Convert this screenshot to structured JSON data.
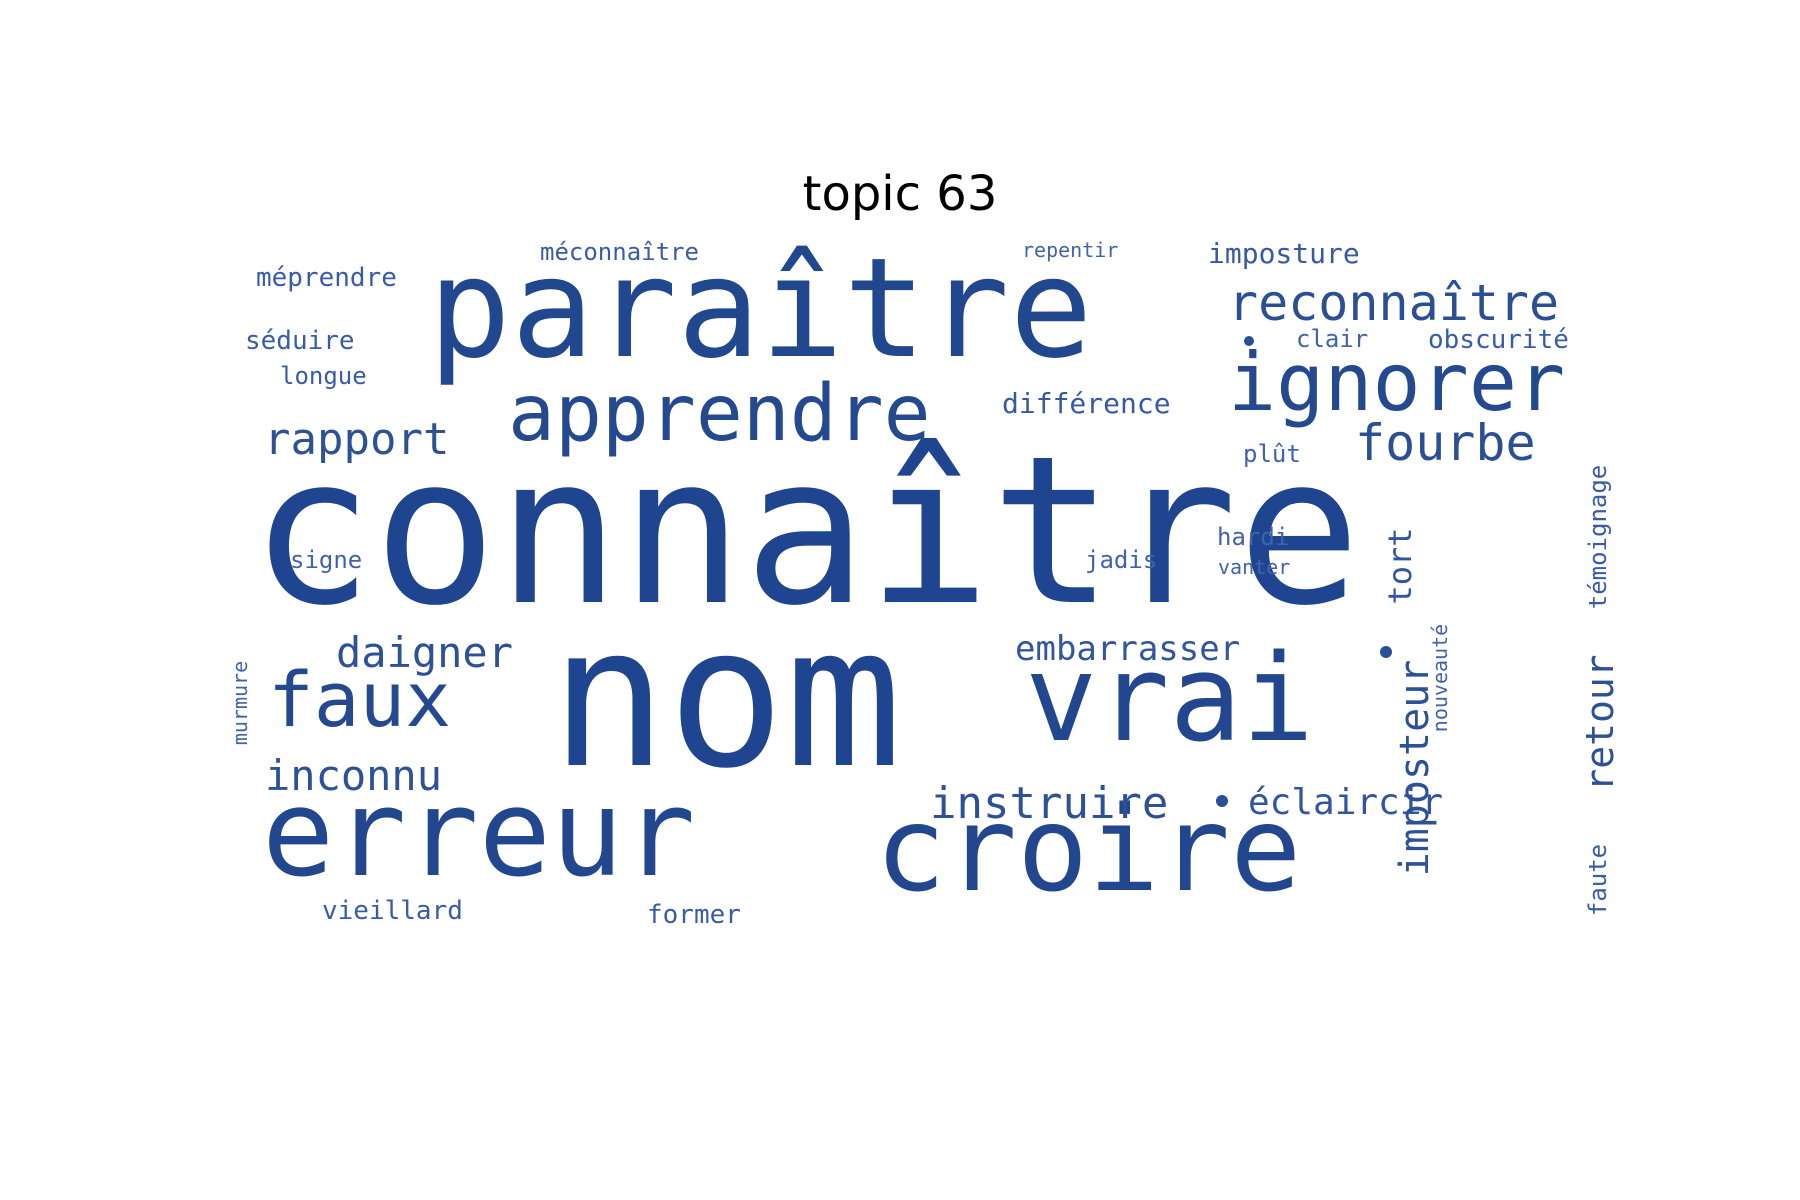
{
  "title": "topic 63",
  "colors": {
    "primary": "#1f4590",
    "background": "#ffffff"
  },
  "words": [
    {
      "text": "connaître"
    },
    {
      "text": "nom"
    },
    {
      "text": "paraître"
    },
    {
      "text": "vrai"
    },
    {
      "text": "croire"
    },
    {
      "text": "erreur"
    },
    {
      "text": "apprendre"
    },
    {
      "text": "ignorer"
    },
    {
      "text": "reconnaître"
    },
    {
      "text": "faux"
    },
    {
      "text": "fourbe"
    },
    {
      "text": "rapport"
    },
    {
      "text": "daigner"
    },
    {
      "text": "instruire"
    },
    {
      "text": "éclaircir"
    },
    {
      "text": "inconnu"
    },
    {
      "text": "imposteur"
    },
    {
      "text": "retour"
    },
    {
      "text": "embarrasser"
    },
    {
      "text": "différence"
    },
    {
      "text": "imposture"
    },
    {
      "text": "tort"
    },
    {
      "text": "méprendre"
    },
    {
      "text": "méconnaître"
    },
    {
      "text": "repentir"
    },
    {
      "text": "séduire"
    },
    {
      "text": "longue"
    },
    {
      "text": "clair"
    },
    {
      "text": "obscurité"
    },
    {
      "text": "plût"
    },
    {
      "text": "témoignage"
    },
    {
      "text": "signe"
    },
    {
      "text": "jadis"
    },
    {
      "text": "hardi"
    },
    {
      "text": "vanter"
    },
    {
      "text": "murmure"
    },
    {
      "text": "nouveauté"
    },
    {
      "text": "vieillard"
    },
    {
      "text": "former"
    },
    {
      "text": "faute"
    }
  ]
}
